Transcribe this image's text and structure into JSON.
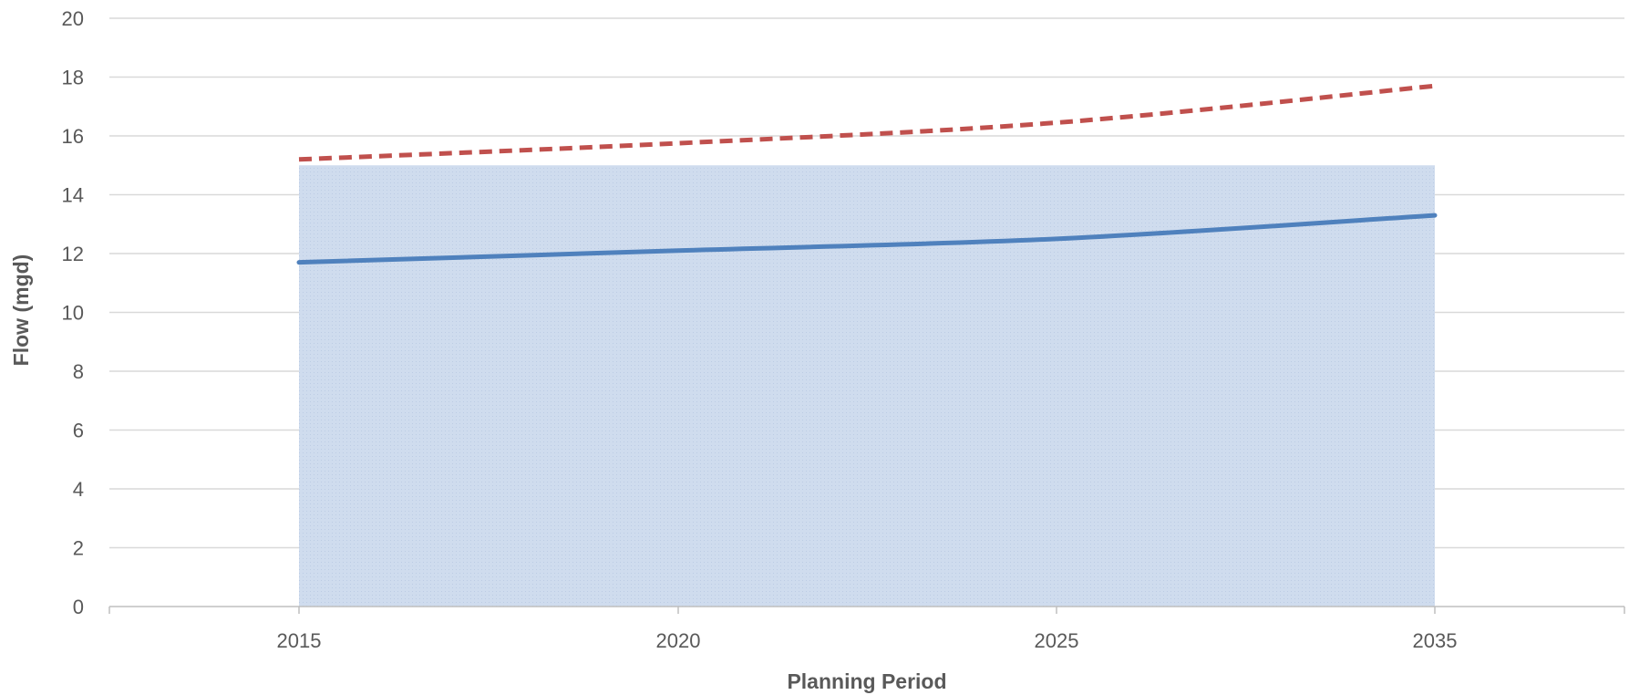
{
  "chart_data": {
    "type": "line",
    "title": "",
    "xlabel": "Planning Period",
    "ylabel": "Flow (mgd)",
    "categories": [
      "2015",
      "2020",
      "2025",
      "2035"
    ],
    "ylim": [
      0,
      20
    ],
    "yticks": [
      0,
      2,
      4,
      6,
      8,
      10,
      12,
      14,
      16,
      18,
      20
    ],
    "grid": true,
    "legend": "none",
    "area": {
      "value": 15,
      "color": "#c9d9ec"
    },
    "series": [
      {
        "values": [
          11.7,
          12.1,
          12.5,
          13.3
        ],
        "color": "#4f81bd",
        "style": "solid"
      },
      {
        "values": [
          15.2,
          15.75,
          16.45,
          17.7
        ],
        "color": "#c0504d",
        "style": "dashed"
      }
    ]
  }
}
